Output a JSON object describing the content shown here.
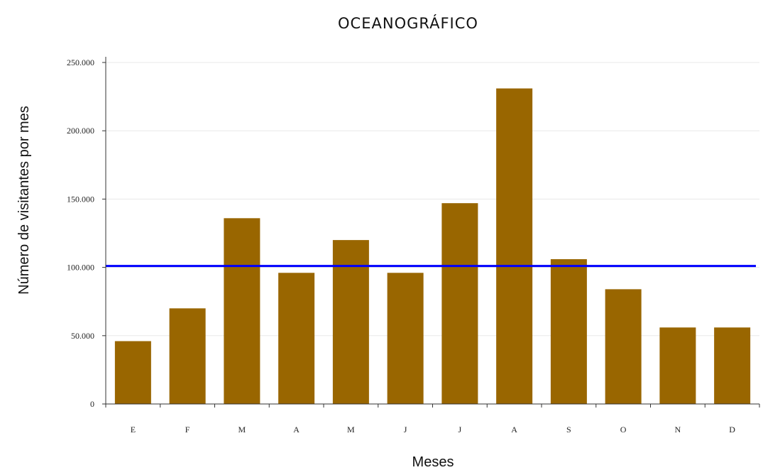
{
  "chart_data": {
    "type": "bar",
    "title": "OCEANOGRÁFICO",
    "xlabel": "Meses",
    "ylabel": "Número de visitantes por mes",
    "categories": [
      "E",
      "F",
      "M",
      "A",
      "M",
      "J",
      "J",
      "A",
      "S",
      "O",
      "N",
      "D"
    ],
    "series": [
      {
        "values": [
          46000,
          70000,
          136000,
          96000,
          120000,
          96000,
          147000,
          231000,
          106000,
          84000,
          56000,
          56000
        ],
        "color": "#996600"
      }
    ],
    "reference_line": {
      "value": 101000,
      "color": "#0000ff"
    },
    "ylim": [
      0,
      250000
    ],
    "yticks": [
      0,
      50000,
      100000,
      150000,
      200000,
      250000
    ],
    "ytick_labels": [
      "0",
      "50.000",
      "100.000",
      "150.000",
      "200.000",
      "250.000"
    ],
    "grid": true,
    "legend": "none"
  }
}
